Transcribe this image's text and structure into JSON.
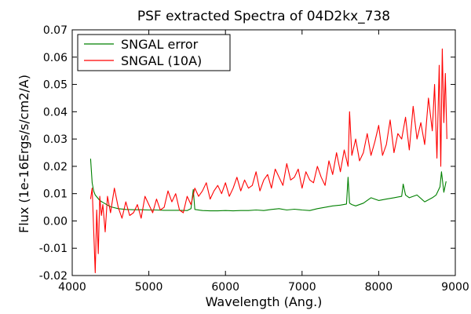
{
  "chart_data": {
    "type": "line",
    "title": "PSF extracted Spectra of 04D2kx_738",
    "xlabel": "Wavelength (Ang.)",
    "ylabel": "Flux (1e-16Ergs/s/cm2/A)",
    "xlim": [
      4000,
      9000
    ],
    "ylim": [
      -0.02,
      0.07
    ],
    "xticks": [
      4000,
      5000,
      6000,
      7000,
      8000,
      9000
    ],
    "xtick_labels": [
      "4000",
      "5000",
      "6000",
      "7000",
      "8000",
      "9000"
    ],
    "yticks": [
      -0.02,
      -0.01,
      0.0,
      0.01,
      0.02,
      0.03,
      0.04,
      0.05,
      0.06,
      0.07
    ],
    "ytick_labels": [
      "-0.02",
      "-0.01",
      "0.00",
      "0.01",
      "0.02",
      "0.03",
      "0.04",
      "0.05",
      "0.06",
      "0.07"
    ],
    "grid": false,
    "legend_position": "top-left",
    "series": [
      {
        "name": "SNGAL error",
        "color": "#008000",
        "x": [
          4240,
          4260,
          4280,
          4300,
          4330,
          4360,
          4400,
          4450,
          4500,
          4600,
          4700,
          4800,
          4900,
          5000,
          5100,
          5200,
          5300,
          5400,
          5500,
          5550,
          5580,
          5600,
          5700,
          5800,
          5900,
          6000,
          6100,
          6200,
          6300,
          6400,
          6500,
          6600,
          6700,
          6800,
          6900,
          7000,
          7100,
          7200,
          7300,
          7400,
          7500,
          7580,
          7600,
          7620,
          7650,
          7700,
          7800,
          7900,
          8000,
          8100,
          8200,
          8300,
          8320,
          8350,
          8400,
          8500,
          8600,
          8700,
          8750,
          8800,
          8820,
          8850,
          8880
        ],
        "values": [
          0.0228,
          0.014,
          0.011,
          0.0095,
          0.0085,
          0.0075,
          0.0068,
          0.006,
          0.0052,
          0.0045,
          0.0042,
          0.0041,
          0.0041,
          0.004,
          0.004,
          0.0039,
          0.0039,
          0.0039,
          0.0038,
          0.0045,
          0.0115,
          0.0042,
          0.0038,
          0.0037,
          0.0037,
          0.0038,
          0.0037,
          0.0038,
          0.0038,
          0.004,
          0.0038,
          0.0042,
          0.0045,
          0.004,
          0.0043,
          0.004,
          0.0038,
          0.0045,
          0.005,
          0.0055,
          0.0058,
          0.0062,
          0.016,
          0.0065,
          0.006,
          0.0055,
          0.0065,
          0.0085,
          0.0075,
          0.008,
          0.0085,
          0.009,
          0.0135,
          0.0095,
          0.0085,
          0.0095,
          0.007,
          0.0085,
          0.0095,
          0.0125,
          0.018,
          0.0105,
          0.0145
        ]
      },
      {
        "name": "SNGAL (10A)",
        "color": "#ff0000",
        "x": [
          4240,
          4260,
          4280,
          4300,
          4320,
          4340,
          4360,
          4380,
          4400,
          4430,
          4460,
          4500,
          4550,
          4600,
          4650,
          4700,
          4750,
          4800,
          4850,
          4900,
          4950,
          5000,
          5050,
          5100,
          5150,
          5200,
          5250,
          5300,
          5350,
          5400,
          5450,
          5500,
          5550,
          5600,
          5650,
          5700,
          5750,
          5800,
          5850,
          5900,
          5950,
          6000,
          6050,
          6100,
          6150,
          6200,
          6250,
          6300,
          6350,
          6400,
          6450,
          6500,
          6550,
          6600,
          6650,
          6700,
          6750,
          6800,
          6850,
          6900,
          6950,
          7000,
          7050,
          7100,
          7150,
          7200,
          7250,
          7300,
          7350,
          7400,
          7450,
          7500,
          7550,
          7600,
          7620,
          7650,
          7700,
          7750,
          7800,
          7850,
          7900,
          7950,
          8000,
          8050,
          8100,
          8150,
          8200,
          8250,
          8300,
          8350,
          8400,
          8450,
          8500,
          8550,
          8600,
          8650,
          8700,
          8730,
          8760,
          8790,
          8810,
          8830,
          8850,
          8870,
          8890
        ],
        "values": [
          0.008,
          0.012,
          -0.003,
          -0.019,
          0.004,
          -0.012,
          0.009,
          0.002,
          0.006,
          -0.004,
          0.009,
          0.003,
          0.012,
          0.005,
          0.001,
          0.007,
          0.002,
          0.003,
          0.006,
          0.001,
          0.009,
          0.006,
          0.003,
          0.008,
          0.004,
          0.005,
          0.011,
          0.007,
          0.01,
          0.004,
          0.003,
          0.009,
          0.006,
          0.012,
          0.009,
          0.011,
          0.014,
          0.008,
          0.011,
          0.013,
          0.01,
          0.014,
          0.009,
          0.012,
          0.016,
          0.011,
          0.015,
          0.012,
          0.013,
          0.018,
          0.011,
          0.015,
          0.017,
          0.012,
          0.019,
          0.016,
          0.013,
          0.021,
          0.015,
          0.016,
          0.019,
          0.012,
          0.018,
          0.015,
          0.014,
          0.02,
          0.016,
          0.013,
          0.022,
          0.017,
          0.025,
          0.018,
          0.026,
          0.02,
          0.04,
          0.024,
          0.03,
          0.022,
          0.025,
          0.032,
          0.024,
          0.029,
          0.035,
          0.024,
          0.028,
          0.037,
          0.025,
          0.032,
          0.03,
          0.038,
          0.026,
          0.042,
          0.03,
          0.036,
          0.028,
          0.045,
          0.033,
          0.05,
          0.023,
          0.057,
          0.02,
          0.063,
          0.036,
          0.054,
          0.03
        ]
      }
    ]
  }
}
